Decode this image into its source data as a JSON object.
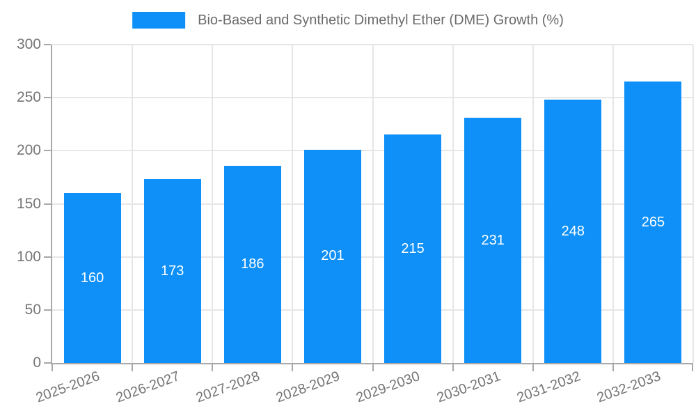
{
  "chart_data": {
    "type": "bar",
    "title": "Bio-Based and Synthetic Dimethyl Ether (DME) Growth (%)",
    "categories": [
      "2025-2026",
      "2026-2027",
      "2027-2028",
      "2028-2029",
      "2029-2030",
      "2030-2031",
      "2031-2032",
      "2032-2033"
    ],
    "values": [
      160,
      173,
      186,
      201,
      215,
      231,
      248,
      265
    ],
    "xlabel": "",
    "ylabel": "",
    "ylim": [
      0,
      300
    ],
    "yticks": [
      0,
      50,
      100,
      150,
      200,
      250,
      300
    ],
    "grid": true,
    "legend_position": "top",
    "bar_labels_inside": true,
    "colors": {
      "bar": "#0e90f8",
      "bar_value_label": "#ffffff",
      "axis_line": "#a8a8a8",
      "grid_line": "#e6e6e6",
      "tick_label": "#757575",
      "legend_text": "#6b6b6b",
      "background": "#ffffff"
    }
  }
}
